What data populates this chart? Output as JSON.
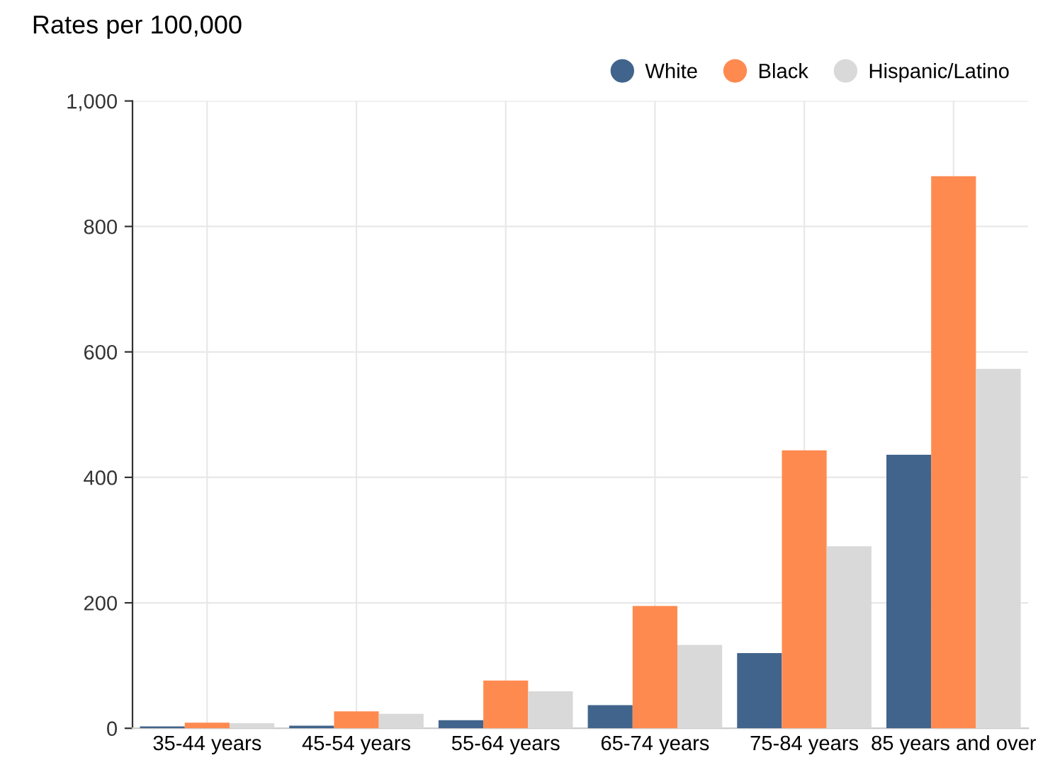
{
  "chart_data": {
    "type": "bar",
    "title": "Rates per 100,000",
    "categories": [
      "35-44 years",
      "45-54 years",
      "55-64 years",
      "65-74 years",
      "75-84 years",
      "85 years and over"
    ],
    "series": [
      {
        "name": "White",
        "color": "#41648c",
        "values": [
          3,
          4,
          13,
          37,
          120,
          436
        ]
      },
      {
        "name": "Black",
        "color": "#ff8a50",
        "values": [
          9,
          27,
          76,
          195,
          443,
          880
        ]
      },
      {
        "name": "Hispanic/Latino",
        "color": "#d9d9d9",
        "values": [
          8,
          23,
          59,
          133,
          290,
          573
        ]
      }
    ],
    "ylim": [
      0,
      1000
    ],
    "yticks": [
      0,
      200,
      400,
      600,
      800,
      {
        "value": 1000,
        "label": "1,000"
      }
    ],
    "grid": true,
    "legend": "top right"
  }
}
